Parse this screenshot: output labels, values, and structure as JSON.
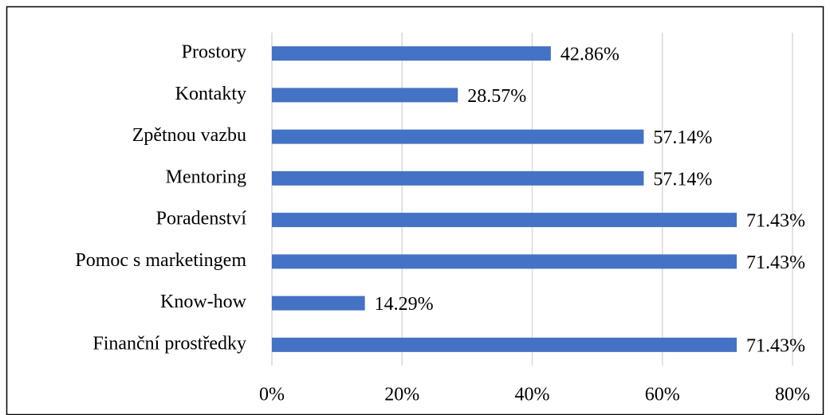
{
  "chart_data": {
    "type": "bar",
    "orientation": "horizontal",
    "categories": [
      "Prostory",
      "Kontakty",
      "Zpětnou vazbu",
      "Mentoring",
      "Poradenství",
      "Pomoc s marketingem",
      "Know-how",
      "Finanční prostředky"
    ],
    "values": [
      42.86,
      28.57,
      57.14,
      57.14,
      71.43,
      71.43,
      14.29,
      71.43
    ],
    "value_labels": [
      "42.86%",
      "28.57%",
      "57.14%",
      "57.14%",
      "71.43%",
      "71.43%",
      "14.29%",
      "71.43%"
    ],
    "color": "#4472c4",
    "xlim": [
      0,
      80
    ],
    "xticks": [
      {
        "value": 0,
        "label": "0%"
      },
      {
        "value": 20,
        "label": "20%"
      },
      {
        "value": 40,
        "label": "40%"
      },
      {
        "value": 60,
        "label": "60%"
      },
      {
        "value": 80,
        "label": "80%"
      }
    ],
    "grid": true
  }
}
